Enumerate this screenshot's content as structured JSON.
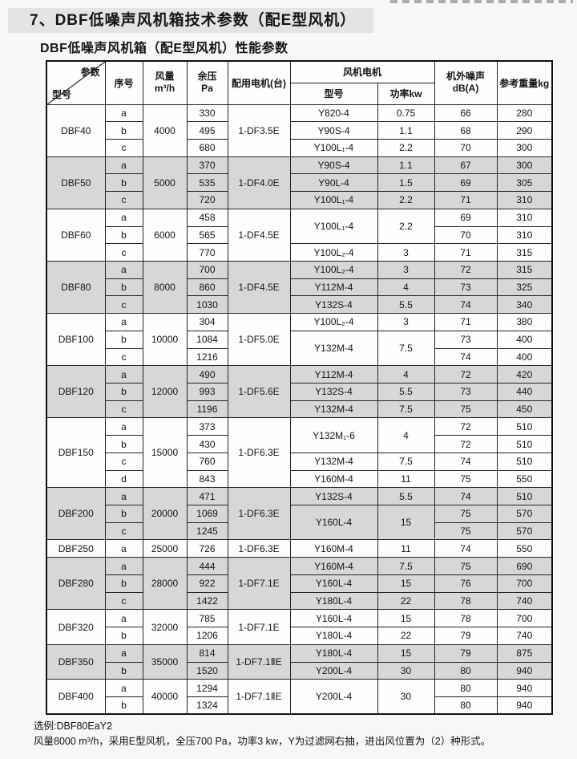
{
  "page": {
    "title": "7、DBF低噪声风机箱技术参数（配E型风机）",
    "subtitle": "DBF低噪声风机箱（配E型风机）性能参数"
  },
  "table": {
    "header": {
      "corner_top": "参数",
      "corner_bottom": "型号",
      "seq": "序号",
      "airflow_l1": "风量",
      "airflow_l2": "m³/h",
      "pressure_l1": "余压",
      "pressure_l2": "Pa",
      "motor_unit": "配用电机(台)",
      "fan_motor_group": "风机电机",
      "motor_model": "型号",
      "power": "功率kw",
      "noise_l1": "机外噪声",
      "noise_l2": "dB(A)",
      "weight": "参考重量kg"
    },
    "groups": [
      {
        "model": "DBF40",
        "airflow": "4000",
        "motor_unit": "1-DF3.5E",
        "shaded": false,
        "rows": [
          {
            "seq": "a",
            "pressure": "330",
            "motor": "Y820-4",
            "power": "0.75",
            "noise": "66",
            "weight": "280"
          },
          {
            "seq": "b",
            "pressure": "495",
            "motor": "Y90S-4",
            "power": "1.1",
            "noise": "68",
            "weight": "290"
          },
          {
            "seq": "c",
            "pressure": "680",
            "motor": "Y100L₁-4",
            "power": "2.2",
            "noise": "70",
            "weight": "300"
          }
        ]
      },
      {
        "model": "DBF50",
        "airflow": "5000",
        "motor_unit": "1-DF4.0E",
        "shaded": true,
        "rows": [
          {
            "seq": "a",
            "pressure": "370",
            "motor": "Y90S-4",
            "power": "1.1",
            "noise": "67",
            "weight": "300"
          },
          {
            "seq": "b",
            "pressure": "535",
            "motor": "Y90L-4",
            "power": "1.5",
            "noise": "69",
            "weight": "305"
          },
          {
            "seq": "c",
            "pressure": "720",
            "motor": "Y100L₁-4",
            "power": "2.2",
            "noise": "71",
            "weight": "310"
          }
        ]
      },
      {
        "model": "DBF60",
        "airflow": "6000",
        "motor_unit": "1-DF4.5E",
        "shaded": false,
        "rows": [
          {
            "seq": "a",
            "pressure": "458",
            "motor": "Y100L₁-4",
            "motor_span": 2,
            "power": "2.2",
            "power_span": 2,
            "noise": "69",
            "weight": "310"
          },
          {
            "seq": "b",
            "pressure": "565",
            "noise": "70",
            "weight": "310"
          },
          {
            "seq": "c",
            "pressure": "770",
            "motor": "Y100L₂-4",
            "power": "3",
            "noise": "71",
            "weight": "315"
          }
        ]
      },
      {
        "model": "DBF80",
        "airflow": "8000",
        "motor_unit": "1-DF4.5E",
        "shaded": true,
        "rows": [
          {
            "seq": "a",
            "pressure": "700",
            "motor": "Y100L₂-4",
            "power": "3",
            "noise": "72",
            "weight": "315"
          },
          {
            "seq": "b",
            "pressure": "860",
            "motor": "Y112M-4",
            "power": "4",
            "noise": "73",
            "weight": "325"
          },
          {
            "seq": "c",
            "pressure": "1030",
            "motor": "Y132S-4",
            "power": "5.5",
            "noise": "74",
            "weight": "340"
          }
        ]
      },
      {
        "model": "DBF100",
        "airflow": "10000",
        "motor_unit": "1-DF5.0E",
        "shaded": false,
        "rows": [
          {
            "seq": "a",
            "pressure": "304",
            "motor": "Y100L₂-4",
            "power": "3",
            "noise": "71",
            "weight": "380"
          },
          {
            "seq": "b",
            "pressure": "1084",
            "motor": "Y132M-4",
            "motor_span": 2,
            "power": "7.5",
            "power_span": 2,
            "noise": "73",
            "weight": "400"
          },
          {
            "seq": "c",
            "pressure": "1216",
            "noise": "74",
            "weight": "400"
          }
        ]
      },
      {
        "model": "DBF120",
        "airflow": "12000",
        "motor_unit": "1-DF5.6E",
        "shaded": true,
        "rows": [
          {
            "seq": "a",
            "pressure": "490",
            "motor": "Y112M-4",
            "power": "4",
            "noise": "72",
            "weight": "420"
          },
          {
            "seq": "b",
            "pressure": "993",
            "motor": "Y132S-4",
            "power": "5.5",
            "noise": "73",
            "weight": "440"
          },
          {
            "seq": "c",
            "pressure": "1196",
            "motor": "Y132M-4",
            "power": "7.5",
            "noise": "75",
            "weight": "450"
          }
        ]
      },
      {
        "model": "DBF150",
        "airflow": "15000",
        "motor_unit": "1-DF6.3E",
        "shaded": false,
        "rows": [
          {
            "seq": "a",
            "pressure": "373",
            "motor": "Y132M₁-6",
            "motor_span": 2,
            "power": "4",
            "power_span": 2,
            "noise": "72",
            "weight": "510"
          },
          {
            "seq": "b",
            "pressure": "430",
            "noise": "72",
            "weight": "510"
          },
          {
            "seq": "c",
            "pressure": "760",
            "motor": "Y132M-4",
            "power": "7.5",
            "noise": "74",
            "weight": "510"
          },
          {
            "seq": "d",
            "pressure": "843",
            "motor": "Y160M-4",
            "power": "11",
            "noise": "75",
            "weight": "550"
          }
        ]
      },
      {
        "model": "DBF200",
        "airflow": "20000",
        "motor_unit": "1-DF6.3E",
        "shaded": true,
        "rows": [
          {
            "seq": "a",
            "pressure": "471",
            "motor": "Y132S-4",
            "power": "5.5",
            "noise": "74",
            "weight": "510"
          },
          {
            "seq": "b",
            "pressure": "1069",
            "motor": "Y160L-4",
            "motor_span": 2,
            "power": "15",
            "power_span": 2,
            "noise": "75",
            "weight": "570"
          },
          {
            "seq": "c",
            "pressure": "1245",
            "noise": "75",
            "weight": "570"
          }
        ]
      },
      {
        "model": "DBF250",
        "airflow": "25000",
        "motor_unit": "1-DF6.3E",
        "shaded": false,
        "rows": [
          {
            "seq": "a",
            "pressure": "726",
            "motor": "Y160M-4",
            "power": "11",
            "noise": "74",
            "weight": "550"
          }
        ]
      },
      {
        "model": "DBF280",
        "airflow": "28000",
        "motor_unit": "1-DF7.1E",
        "shaded": true,
        "rows": [
          {
            "seq": "a",
            "pressure": "444",
            "motor": "Y160M-4",
            "power": "7.5",
            "noise": "75",
            "weight": "690"
          },
          {
            "seq": "b",
            "pressure": "922",
            "motor": "Y160L-4",
            "power": "15",
            "noise": "76",
            "weight": "700"
          },
          {
            "seq": "c",
            "pressure": "1422",
            "motor": "Y180L-4",
            "power": "22",
            "noise": "78",
            "weight": "740"
          }
        ]
      },
      {
        "model": "DBF320",
        "airflow": "32000",
        "motor_unit": "1-DF7.1E",
        "shaded": false,
        "rows": [
          {
            "seq": "a",
            "pressure": "785",
            "motor": "Y160L-4",
            "power": "15",
            "noise": "78",
            "weight": "700"
          },
          {
            "seq": "b",
            "pressure": "1206",
            "motor": "Y180L-4",
            "power": "22",
            "noise": "79",
            "weight": "740"
          }
        ]
      },
      {
        "model": "DBF350",
        "airflow": "35000",
        "motor_unit": "1-DF7.1ⅡE",
        "shaded": true,
        "rows": [
          {
            "seq": "a",
            "pressure": "814",
            "motor": "Y180L-4",
            "power": "15",
            "noise": "79",
            "weight": "875"
          },
          {
            "seq": "b",
            "pressure": "1520",
            "motor": "Y200L-4",
            "power": "30",
            "noise": "80",
            "weight": "940"
          }
        ]
      },
      {
        "model": "DBF400",
        "airflow": "40000",
        "motor_unit": "1-DF7.1ⅡE",
        "shaded": false,
        "rows": [
          {
            "seq": "a",
            "pressure": "1294",
            "motor": "Y200L-4",
            "motor_span": 2,
            "power": "30",
            "power_span": 2,
            "noise": "80",
            "weight": "940"
          },
          {
            "seq": "b",
            "pressure": "1324",
            "noise": "80",
            "weight": "940"
          }
        ]
      }
    ]
  },
  "footer": {
    "line1": "选例:DBF80EaY2",
    "line2": "风量8000 m³/h，采用E型风机，全压700 Pa，功率3 kw，Y为过滤网右抽，进出风位置为（2）种形式。"
  },
  "colors": {
    "shaded_band": "#d7d7d6",
    "title_bg": "#e4e4e3",
    "page_bg": "#f7f7f5",
    "border": "#242424"
  }
}
